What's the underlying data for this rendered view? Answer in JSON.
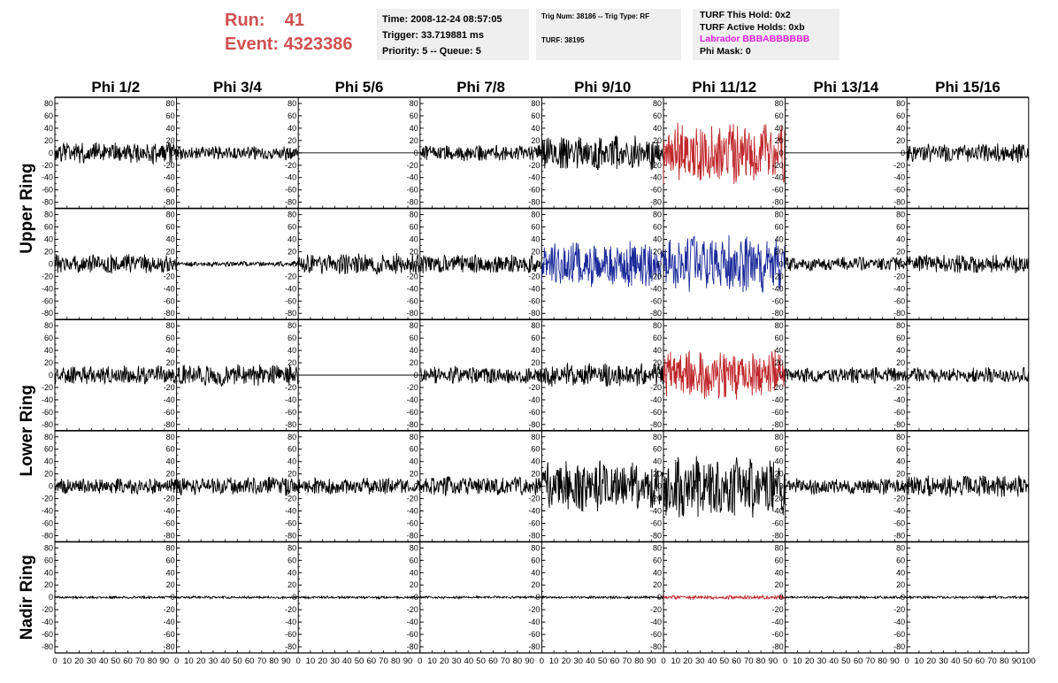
{
  "header": {
    "run_label": "Run:",
    "run_value": "41",
    "event_label": "Event:",
    "event_value": "4323386",
    "time": "Time: 2008-12-24 08:57:05",
    "trigger": "Trigger: 33.719881 ms",
    "priority": "Priority: 5 -- Queue: 5",
    "trig_num": "Trig Num: 38186 -- Trig Type: RF",
    "turf": "TURF: 38195",
    "turf_hold": "TURF This Hold: 0x2",
    "turf_active": "TURF Active Holds: 0xb",
    "labrador": "Labrador BBBABBBBBB",
    "phi_mask": "Phi Mask: 0"
  },
  "colors": {
    "header_red": "#d05050",
    "info_bg": "#efefef",
    "magenta": "#e020e0",
    "trace_default": "#000000",
    "trace_red": "#c0282c",
    "trace_blue": "#1c2a9a"
  },
  "chart_data": {
    "type": "line",
    "columns": [
      "Phi 1/2",
      "Phi 3/4",
      "Phi 5/6",
      "Phi 7/8",
      "Phi 9/10",
      "Phi 11/12",
      "Phi 13/14",
      "Phi 15/16"
    ],
    "rows": [
      "Upper Ring",
      "",
      "Lower Ring",
      "",
      "Nadir Ring"
    ],
    "row_labels": [
      {
        "text": "Upper Ring",
        "rows": [
          0,
          1
        ]
      },
      {
        "text": "Lower Ring",
        "rows": [
          2,
          3
        ]
      },
      {
        "text": "Nadir Ring",
        "rows": [
          4,
          4
        ]
      }
    ],
    "xlim": [
      0,
      100
    ],
    "ylim": [
      -90,
      90
    ],
    "y_ticks": [
      80,
      60,
      40,
      20,
      0,
      -20,
      -40,
      -60,
      -80
    ],
    "x_tick_labels": [
      "0",
      "10",
      "20",
      "30",
      "40",
      "50",
      "60",
      "70",
      "80",
      "90",
      "100"
    ],
    "waveforms": [
      [
        {
          "amp": 18,
          "color": "black"
        },
        {
          "amp": 12,
          "color": "black"
        },
        {
          "amp": 0,
          "color": "black"
        },
        {
          "amp": 14,
          "color": "black"
        },
        {
          "amp": 28,
          "color": "black"
        },
        {
          "amp": 52,
          "color": "red"
        },
        {
          "amp": 0,
          "color": "black"
        },
        {
          "amp": 16,
          "color": "black"
        }
      ],
      [
        {
          "amp": 16,
          "color": "black"
        },
        {
          "amp": 4,
          "color": "black"
        },
        {
          "amp": 18,
          "color": "black"
        },
        {
          "amp": 16,
          "color": "black"
        },
        {
          "amp": 38,
          "color": "blue"
        },
        {
          "amp": 48,
          "color": "blue"
        },
        {
          "amp": 12,
          "color": "black"
        },
        {
          "amp": 16,
          "color": "black"
        }
      ],
      [
        {
          "amp": 16,
          "color": "black"
        },
        {
          "amp": 18,
          "color": "black"
        },
        {
          "amp": 0,
          "color": "black"
        },
        {
          "amp": 14,
          "color": "black"
        },
        {
          "amp": 20,
          "color": "black"
        },
        {
          "amp": 42,
          "color": "red"
        },
        {
          "amp": 14,
          "color": "black"
        },
        {
          "amp": 13,
          "color": "black"
        }
      ],
      [
        {
          "amp": 13,
          "color": "black"
        },
        {
          "amp": 16,
          "color": "black"
        },
        {
          "amp": 14,
          "color": "black"
        },
        {
          "amp": 16,
          "color": "black"
        },
        {
          "amp": 42,
          "color": "black"
        },
        {
          "amp": 52,
          "color": "black"
        },
        {
          "amp": 14,
          "color": "black"
        },
        {
          "amp": 18,
          "color": "black"
        }
      ],
      [
        {
          "amp": 2,
          "color": "black"
        },
        {
          "amp": 2,
          "color": "black"
        },
        {
          "amp": 2,
          "color": "black"
        },
        {
          "amp": 2,
          "color": "black"
        },
        {
          "amp": 2,
          "color": "black"
        },
        {
          "amp": 3,
          "color": "red"
        },
        {
          "amp": 2,
          "color": "black"
        },
        {
          "amp": 2,
          "color": "black"
        }
      ]
    ]
  }
}
